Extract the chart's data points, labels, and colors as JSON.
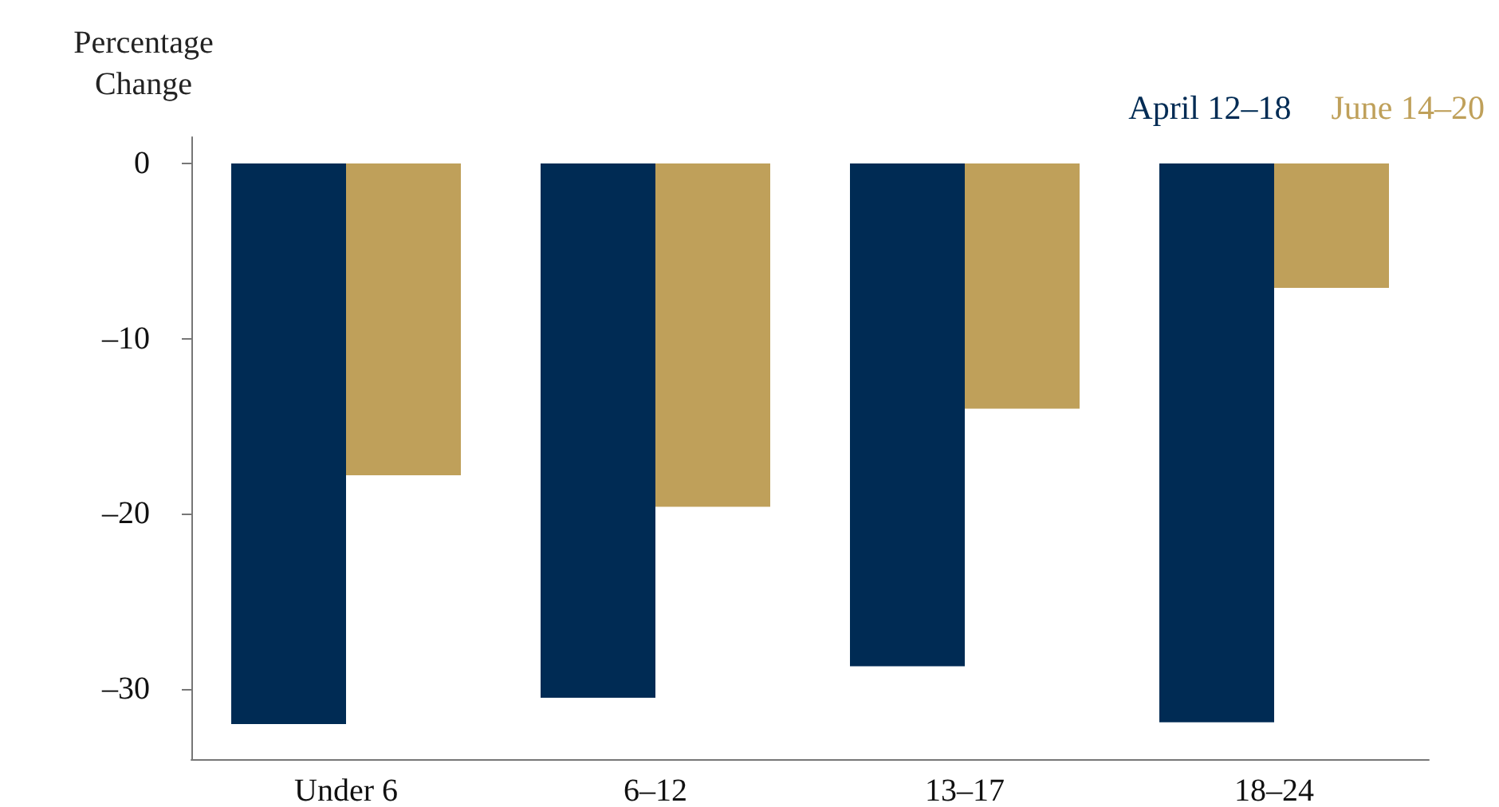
{
  "chart_data": {
    "type": "bar",
    "ylabel": "Percentage\nChange",
    "categories": [
      "Under 6",
      "6–12",
      "13–17",
      "18–24"
    ],
    "series": [
      {
        "name": "April 12–18",
        "color": "#002b54",
        "values": [
          -32.0,
          -30.5,
          -28.7,
          -31.9
        ]
      },
      {
        "name": "June 14–20",
        "color": "#bfa05a",
        "values": [
          -17.8,
          -19.6,
          -14.0,
          -7.1
        ]
      }
    ],
    "ylim": [
      -34,
      1.5
    ],
    "yticks": [
      {
        "value": -30,
        "label": "–30"
      },
      {
        "value": -20,
        "label": "–20"
      },
      {
        "value": -10,
        "label": "–10"
      },
      0
    ],
    "grid": false,
    "legend": "top right"
  }
}
